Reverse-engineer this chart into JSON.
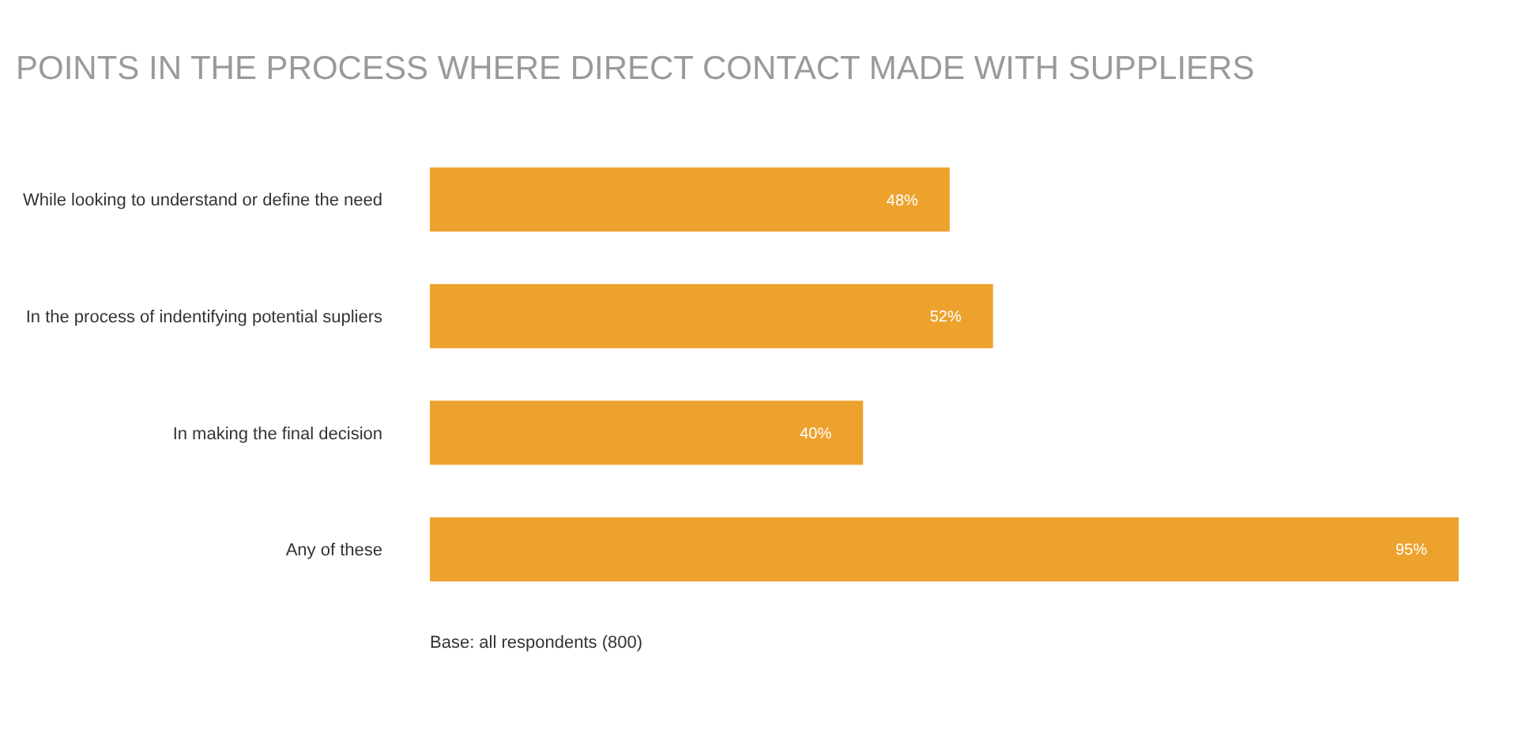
{
  "chart_data": {
    "type": "bar",
    "orientation": "horizontal",
    "title": "POINTS IN THE PROCESS WHERE DIRECT CONTACT MADE WITH SUPPLIERS",
    "categories": [
      "While looking to understand or define the need",
      "In the process of indentifying potential supliers",
      "In making the final decision",
      "Any of these"
    ],
    "values": [
      48,
      52,
      40,
      95
    ],
    "value_labels": [
      "48%",
      "52%",
      "40%",
      "95%"
    ],
    "color": "#eda22e",
    "annotations": [
      "Base: all respondents (800)"
    ]
  }
}
